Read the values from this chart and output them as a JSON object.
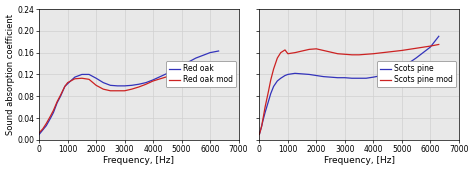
{
  "left": {
    "blue_label": "Red oak",
    "red_label": "Red oak mod",
    "blue_x": [
      0,
      125,
      250,
      400,
      500,
      630,
      750,
      900,
      1000,
      1250,
      1500,
      1750,
      2000,
      2250,
      2500,
      2750,
      3000,
      3250,
      3500,
      3750,
      4000,
      4500,
      5000,
      5500,
      6000,
      6300
    ],
    "blue_y": [
      0.01,
      0.018,
      0.026,
      0.04,
      0.05,
      0.068,
      0.08,
      0.098,
      0.103,
      0.115,
      0.12,
      0.12,
      0.113,
      0.105,
      0.1,
      0.099,
      0.099,
      0.1,
      0.102,
      0.105,
      0.11,
      0.122,
      0.136,
      0.15,
      0.16,
      0.163
    ],
    "red_x": [
      0,
      125,
      250,
      400,
      500,
      630,
      750,
      900,
      1000,
      1250,
      1500,
      1750,
      2000,
      2250,
      2500,
      2750,
      3000,
      3250,
      3500,
      3750,
      4000,
      4500,
      5000,
      5500,
      6000,
      6300
    ],
    "red_y": [
      0.013,
      0.02,
      0.03,
      0.044,
      0.054,
      0.07,
      0.082,
      0.098,
      0.105,
      0.112,
      0.113,
      0.111,
      0.1,
      0.093,
      0.09,
      0.09,
      0.09,
      0.093,
      0.097,
      0.102,
      0.108,
      0.116,
      0.12,
      0.122,
      0.124,
      0.126
    ]
  },
  "right": {
    "blue_label": "Scots pine",
    "red_label": "Scots pine mod",
    "blue_x": [
      0,
      80,
      125,
      200,
      315,
      400,
      500,
      630,
      750,
      900,
      1000,
      1250,
      1500,
      1750,
      2000,
      2250,
      2500,
      2750,
      3000,
      3250,
      3500,
      3750,
      4000,
      4500,
      5000,
      5500,
      6000,
      6300
    ],
    "blue_y": [
      0.01,
      0.025,
      0.035,
      0.05,
      0.07,
      0.085,
      0.098,
      0.108,
      0.113,
      0.118,
      0.12,
      0.122,
      0.121,
      0.12,
      0.118,
      0.116,
      0.115,
      0.114,
      0.114,
      0.113,
      0.113,
      0.113,
      0.115,
      0.12,
      0.132,
      0.15,
      0.17,
      0.19
    ],
    "red_x": [
      0,
      80,
      125,
      200,
      315,
      400,
      500,
      630,
      750,
      900,
      1000,
      1250,
      1500,
      1750,
      2000,
      2250,
      2500,
      2750,
      3000,
      3250,
      3500,
      3750,
      4000,
      4500,
      5000,
      5500,
      6000,
      6300
    ],
    "red_y": [
      0.01,
      0.025,
      0.038,
      0.06,
      0.088,
      0.11,
      0.13,
      0.15,
      0.16,
      0.165,
      0.158,
      0.16,
      0.163,
      0.166,
      0.167,
      0.164,
      0.161,
      0.158,
      0.157,
      0.156,
      0.156,
      0.157,
      0.158,
      0.161,
      0.164,
      0.168,
      0.172,
      0.175
    ]
  },
  "ylabel": "Sound absorption coefficient",
  "xlabel": "Frequency, [Hz]",
  "ylim": [
    0.0,
    0.24
  ],
  "xlim": [
    0,
    7000
  ],
  "yticks": [
    0.0,
    0.04,
    0.08,
    0.12,
    0.16,
    0.2,
    0.24
  ],
  "xticks": [
    0,
    1000,
    2000,
    3000,
    4000,
    5000,
    6000,
    7000
  ],
  "blue_color": "#3333bb",
  "red_color": "#cc2222",
  "grid_color": "#d0d0d0",
  "bg_color": "#e8e8e8",
  "linewidth": 0.9,
  "legend_fontsize": 5.5,
  "tick_fontsize": 5.5,
  "label_fontsize": 6.5,
  "ylabel_fontsize": 6.0
}
